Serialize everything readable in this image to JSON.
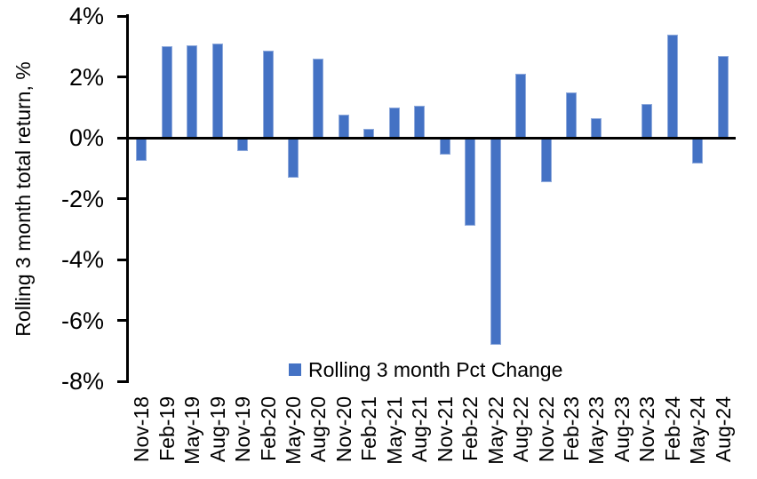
{
  "chart_data": {
    "type": "bar",
    "title": "",
    "xlabel": "",
    "ylabel": "Rolling 3 month total return, %",
    "legend": [
      "Rolling 3 month Pct Change"
    ],
    "legend_position": "bottom-center",
    "grid": false,
    "ylim": [
      -8,
      4
    ],
    "yticks": [
      4,
      2,
      0,
      -2,
      -4,
      -6,
      -8
    ],
    "ytick_suffix": "%",
    "categories": [
      "Nov-18",
      "Feb-19",
      "May-19",
      "Aug-19",
      "Nov-19",
      "Feb-20",
      "May-20",
      "Aug-20",
      "Nov-20",
      "Feb-21",
      "May-21",
      "Aug-21",
      "Nov-21",
      "Feb-22",
      "May-22",
      "Aug-22",
      "Nov-22",
      "Feb-23",
      "May-23",
      "Aug-23",
      "Nov-23",
      "Feb-24",
      "May-24",
      "Aug-24"
    ],
    "values": [
      -0.75,
      3.0,
      3.05,
      3.1,
      -0.45,
      2.85,
      -1.3,
      2.6,
      0.75,
      0.3,
      1.0,
      1.05,
      -0.55,
      -2.9,
      -6.8,
      2.1,
      -1.45,
      1.5,
      0.65,
      0,
      1.1,
      3.4,
      -0.85,
      2.7
    ],
    "colors": {
      "bar_fill": "#4472C4",
      "bar_border": "#8FAADC",
      "axis": "#000000",
      "text": "#000000",
      "background": "#FFFFFF"
    }
  }
}
